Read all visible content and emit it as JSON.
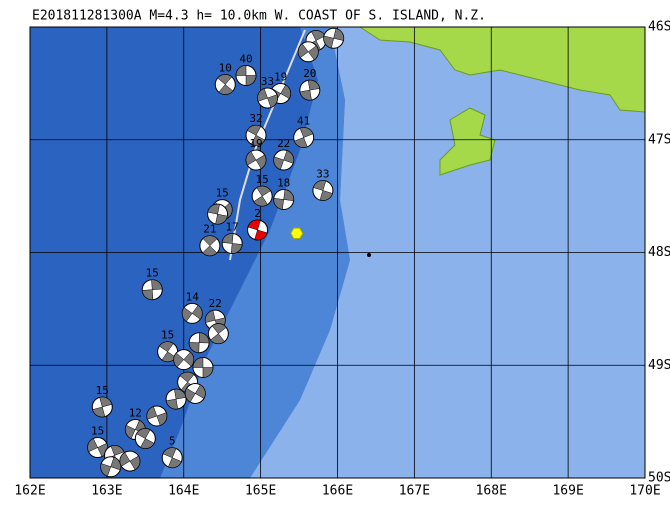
{
  "title": "E201811281300A  M=4.3  h= 10.0km  W. COAST OF S. ISLAND, N.Z.",
  "lon_range": [
    162,
    170
  ],
  "lat_range": [
    46,
    50
  ],
  "xticks": [
    {
      "value": 162,
      "label": "162E"
    },
    {
      "value": 163,
      "label": "163E"
    },
    {
      "value": 164,
      "label": "164E"
    },
    {
      "value": 165,
      "label": "165E"
    },
    {
      "value": 166,
      "label": "166E"
    },
    {
      "value": 167,
      "label": "167E"
    },
    {
      "value": 168,
      "label": "168E"
    },
    {
      "value": 169,
      "label": "169E"
    },
    {
      "value": 170,
      "label": "170E"
    }
  ],
  "yticks": [
    {
      "value": 46,
      "label": "46S"
    },
    {
      "value": 47,
      "label": "47S"
    },
    {
      "value": 48,
      "label": "48S"
    },
    {
      "value": 49,
      "label": "49S"
    },
    {
      "value": 50,
      "label": "50S"
    }
  ],
  "main_event": {
    "label": "2",
    "lon": 164.96,
    "lat": 47.8
  },
  "epicenter": {
    "lon": 165.47,
    "lat": 47.83
  },
  "events": [
    {
      "label": "40",
      "lon": 164.81,
      "lat": 46.43
    },
    {
      "label": "10",
      "lon": 164.54,
      "lat": 46.51
    },
    {
      "label": "20",
      "lon": 165.64,
      "lat": 46.56
    },
    {
      "label": "19",
      "lon": 165.26,
      "lat": 46.59
    },
    {
      "label": "33",
      "lon": 165.09,
      "lat": 46.63
    },
    {
      "label": "32",
      "lon": 164.94,
      "lat": 46.96
    },
    {
      "label": "41",
      "lon": 165.56,
      "lat": 46.98
    },
    {
      "label": "22",
      "lon": 165.3,
      "lat": 47.18
    },
    {
      "label": "19",
      "lon": 164.94,
      "lat": 47.18
    },
    {
      "label": "33",
      "lon": 165.81,
      "lat": 47.45
    },
    {
      "label": "15",
      "lon": 165.02,
      "lat": 47.5
    },
    {
      "label": "18",
      "lon": 165.3,
      "lat": 47.53
    },
    {
      "label": "15",
      "lon": 164.5,
      "lat": 47.62
    },
    {
      "label": "17",
      "lon": 164.63,
      "lat": 47.92
    },
    {
      "label": "21",
      "lon": 164.34,
      "lat": 47.94
    },
    {
      "label": "15",
      "lon": 163.59,
      "lat": 48.33
    },
    {
      "label": "14",
      "lon": 164.11,
      "lat": 48.54
    },
    {
      "label": "22",
      "lon": 164.41,
      "lat": 48.6
    },
    {
      "label": "15",
      "lon": 163.79,
      "lat": 48.88
    },
    {
      "label": "15",
      "lon": 162.94,
      "lat": 49.37
    },
    {
      "label": "12",
      "lon": 163.37,
      "lat": 49.57
    },
    {
      "label": "15",
      "lon": 162.88,
      "lat": 49.73
    },
    {
      "label": "5",
      "lon": 163.85,
      "lat": 49.82
    },
    {
      "lon": 165.72,
      "lat": 46.12
    },
    {
      "lon": 165.95,
      "lat": 46.1
    },
    {
      "lon": 165.62,
      "lat": 46.22
    },
    {
      "lon": 164.44,
      "lat": 47.66
    },
    {
      "lon": 164.45,
      "lat": 48.72
    },
    {
      "lon": 164.2,
      "lat": 48.8
    },
    {
      "lon": 164.0,
      "lat": 48.95
    },
    {
      "lon": 164.25,
      "lat": 49.02
    },
    {
      "lon": 164.05,
      "lat": 49.15
    },
    {
      "lon": 163.9,
      "lat": 49.3
    },
    {
      "lon": 164.15,
      "lat": 49.25
    },
    {
      "lon": 163.65,
      "lat": 49.45
    },
    {
      "lon": 163.5,
      "lat": 49.65
    },
    {
      "lon": 163.1,
      "lat": 49.8
    },
    {
      "lon": 163.05,
      "lat": 49.9
    },
    {
      "lon": 163.3,
      "lat": 49.85
    }
  ]
}
